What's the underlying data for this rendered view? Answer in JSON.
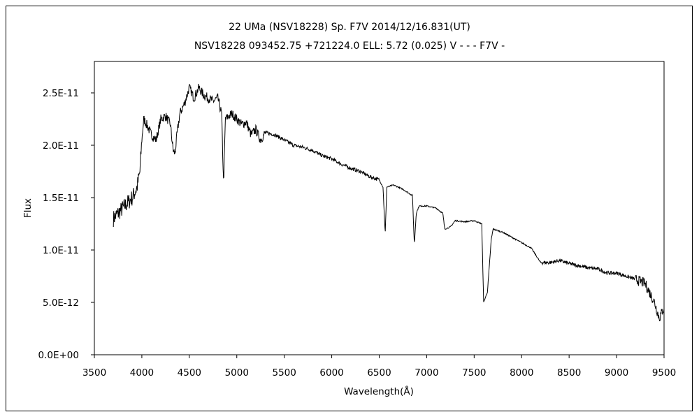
{
  "chart_data": {
    "type": "line",
    "title": "22 UMa (NSV18228)    Sp. F7V    2014/12/16.831(UT)",
    "subtitle": "NSV18228 093452.75 +721224.0 ELL: 5.72 (0.025) V - - - F7V -",
    "xlabel": "Wavelength(Å)",
    "ylabel": "Flux",
    "xlim": [
      3500,
      9500
    ],
    "ylim": [
      0,
      2.8e-11
    ],
    "xticks": [
      3500,
      4000,
      4500,
      5000,
      5500,
      6000,
      6500,
      7000,
      7500,
      8000,
      8500,
      9000,
      9500
    ],
    "yticks": [
      0,
      5e-12,
      1e-11,
      1.5e-11,
      2e-11,
      2.5e-11
    ],
    "ytick_labels": [
      "0.0E+00",
      "5.0E-12",
      "1.0E-11",
      "1.5E-11",
      "2.0E-11",
      "2.5E-11"
    ],
    "grid": false,
    "line_color": "#000000",
    "series": [
      {
        "x": [
          3700,
          3750,
          3800,
          3850,
          3900,
          3950,
          3980,
          4000,
          4020,
          4050,
          4100,
          4150,
          4200,
          4250,
          4300,
          4330,
          4350,
          4370,
          4400,
          4450,
          4500,
          4550,
          4600,
          4650,
          4700,
          4750,
          4800,
          4840,
          4861,
          4880,
          4950,
          5000,
          5050,
          5100,
          5150,
          5200,
          5250,
          5300,
          5400,
          5500,
          5600,
          5700,
          5800,
          5900,
          6000,
          6100,
          6200,
          6300,
          6400,
          6500,
          6540,
          6563,
          6580,
          6650,
          6750,
          6850,
          6870,
          6890,
          6920,
          7000,
          7100,
          7170,
          7190,
          7250,
          7300,
          7400,
          7500,
          7580,
          7600,
          7640,
          7680,
          7700,
          7800,
          7900,
          8000,
          8100,
          8150,
          8200,
          8300,
          8400,
          8500,
          8600,
          8700,
          8800,
          8900,
          9000,
          9100,
          9200,
          9300,
          9400,
          9450,
          9500
        ],
        "y": [
          1.3e-11,
          1.35e-11,
          1.4e-11,
          1.45e-11,
          1.5e-11,
          1.6e-11,
          1.75e-11,
          2.05e-11,
          2.25e-11,
          2.2e-11,
          2.1e-11,
          2.05e-11,
          2.25e-11,
          2.28e-11,
          2.2e-11,
          1.95e-11,
          1.92e-11,
          2.1e-11,
          2.3e-11,
          2.4e-11,
          2.55e-11,
          2.45e-11,
          2.55e-11,
          2.48e-11,
          2.45e-11,
          2.42e-11,
          2.45e-11,
          2.3e-11,
          1.63e-11,
          2.25e-11,
          2.3e-11,
          2.25e-11,
          2.2e-11,
          2.22e-11,
          2.1e-11,
          2.15e-11,
          2.05e-11,
          2.12e-11,
          2.1e-11,
          2.05e-11,
          2e-11,
          1.98e-11,
          1.95e-11,
          1.9e-11,
          1.87e-11,
          1.82e-11,
          1.78e-11,
          1.75e-11,
          1.7e-11,
          1.67e-11,
          1.6e-11,
          1.15e-11,
          1.6e-11,
          1.62e-11,
          1.58e-11,
          1.52e-11,
          1.05e-11,
          1.35e-11,
          1.42e-11,
          1.42e-11,
          1.4e-11,
          1.35e-11,
          1.2e-11,
          1.22e-11,
          1.28e-11,
          1.27e-11,
          1.28e-11,
          1.25e-11,
          5e-12,
          6e-12,
          1.1e-11,
          1.2e-11,
          1.17e-11,
          1.12e-11,
          1.07e-11,
          1.02e-11,
          9.5e-12,
          8.8e-12,
          8.8e-12,
          9e-12,
          8.7e-12,
          8.5e-12,
          8.3e-12,
          8.2e-12,
          7.8e-12,
          7.8e-12,
          7.5e-12,
          7.2e-12,
          6.8e-12,
          5e-12,
          3.5e-12,
          4.5e-12
        ]
      }
    ]
  }
}
